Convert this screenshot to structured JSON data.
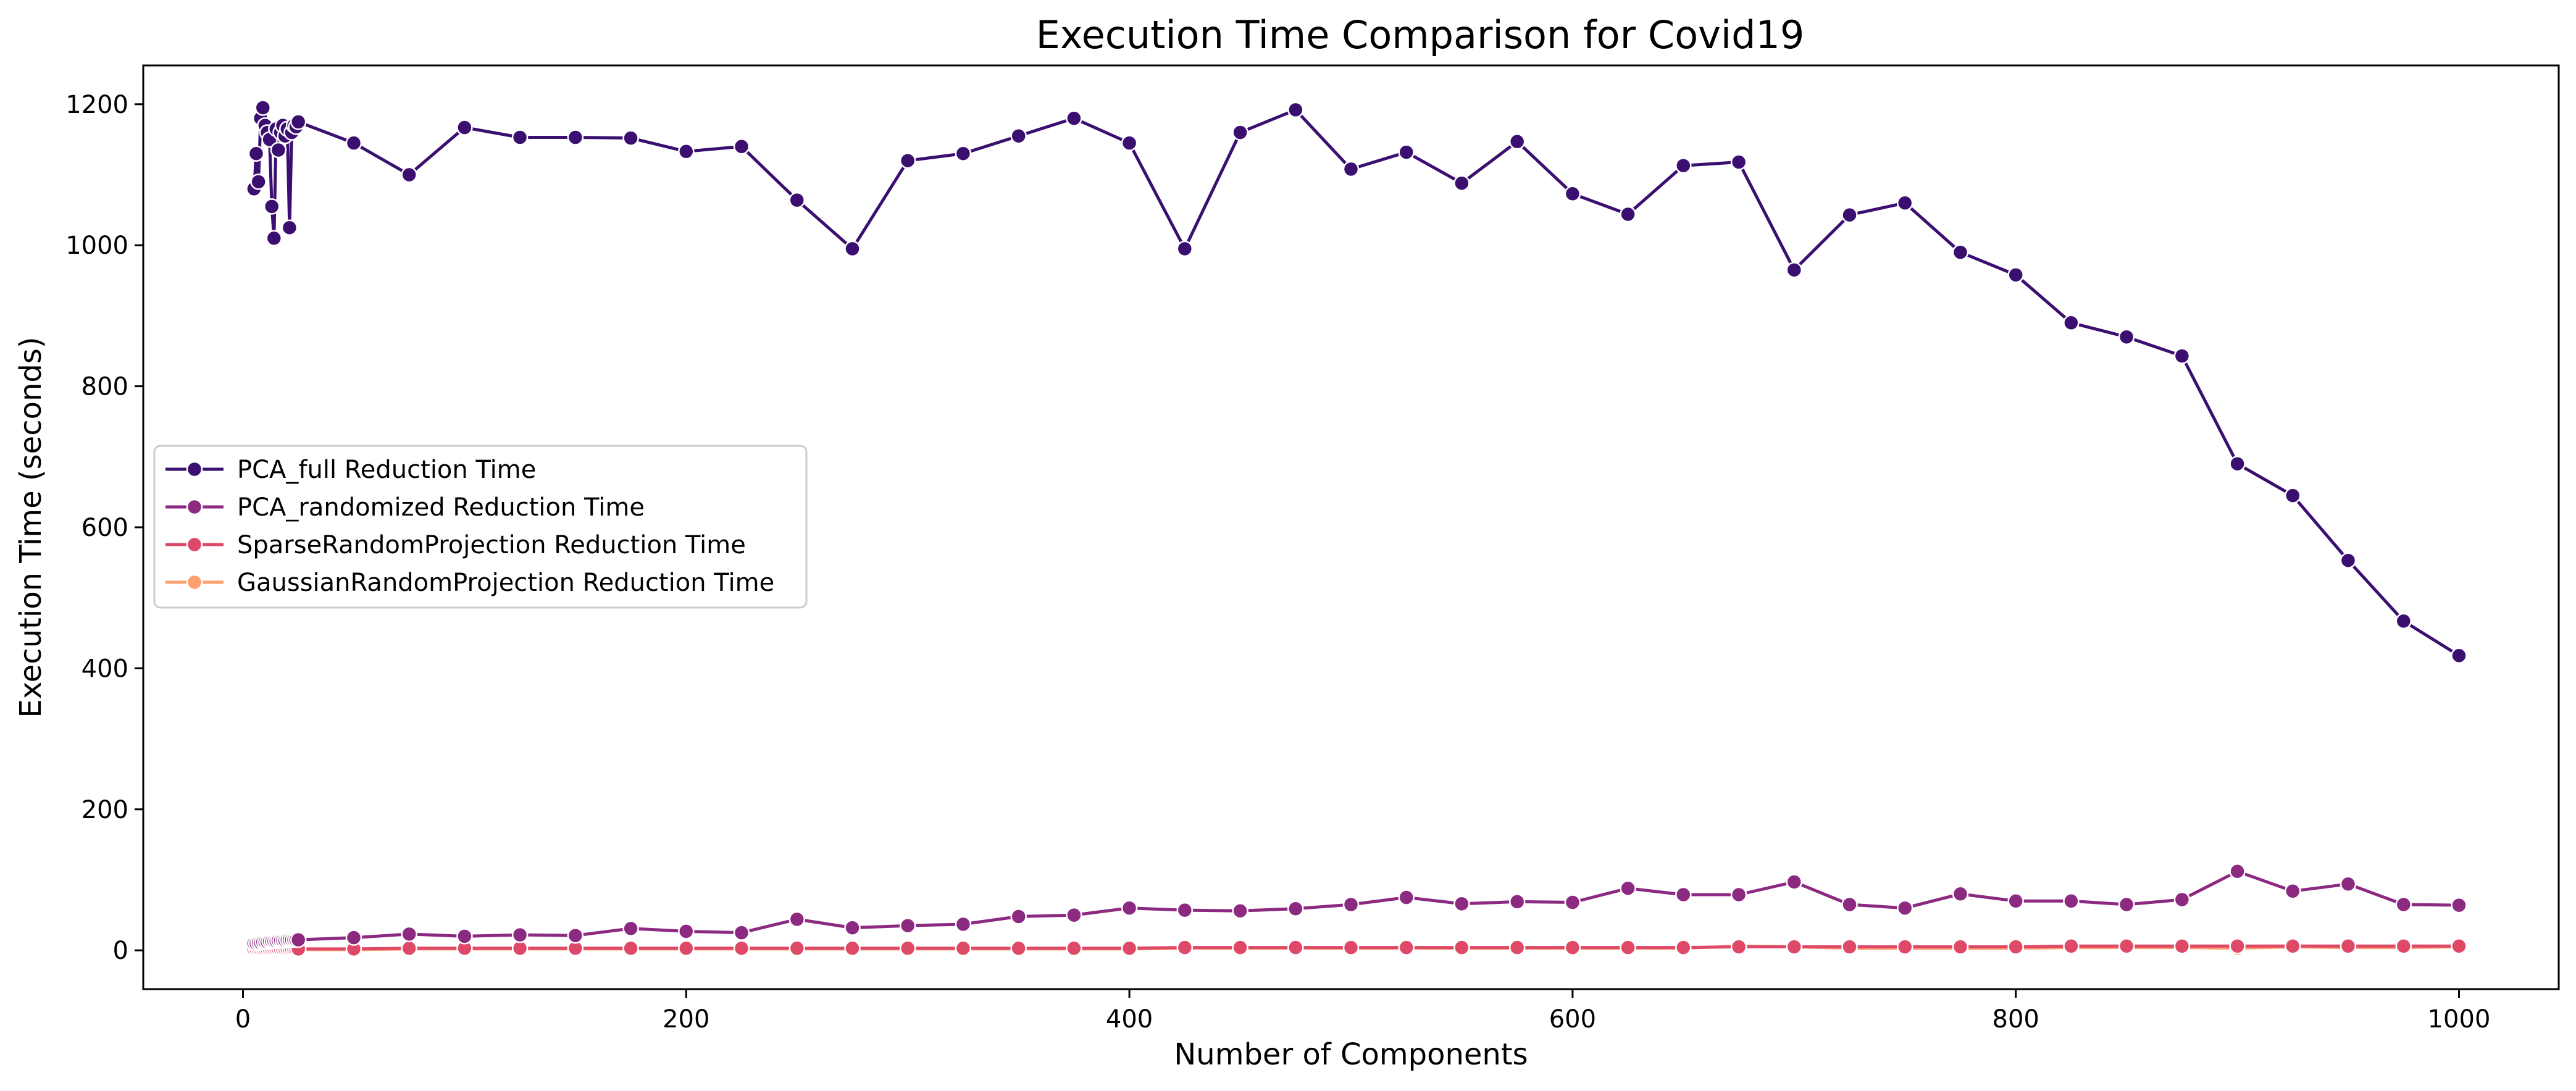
{
  "chart_data": {
    "type": "line",
    "title": "Execution Time Comparison for Covid19",
    "xlabel": "Number of Components",
    "ylabel": "Execution Time (seconds)",
    "xlim": [
      -45,
      1045
    ],
    "ylim": [
      -55,
      1255
    ],
    "xticks": [
      0,
      200,
      400,
      600,
      800,
      1000
    ],
    "yticks": [
      0,
      200,
      400,
      600,
      800,
      1000,
      1200
    ],
    "grid": false,
    "legend_position": "center-left",
    "x": [
      5,
      6,
      7,
      8,
      9,
      10,
      11,
      12,
      13,
      14,
      15,
      16,
      17,
      18,
      19,
      20,
      21,
      22,
      23,
      24,
      25,
      50,
      75,
      100,
      125,
      150,
      175,
      200,
      225,
      250,
      275,
      300,
      325,
      350,
      375,
      400,
      425,
      450,
      475,
      500,
      525,
      550,
      575,
      600,
      625,
      650,
      675,
      700,
      725,
      750,
      775,
      800,
      825,
      850,
      875,
      900,
      925,
      950,
      975,
      1000
    ],
    "series": [
      {
        "name": "PCA_full Reduction Time",
        "color": "#3b0f70",
        "values": [
          1080,
          1130,
          1090,
          1180,
          1195,
          1170,
          1160,
          1150,
          1055,
          1010,
          1165,
          1135,
          1160,
          1170,
          1155,
          1165,
          1025,
          1160,
          1170,
          1168,
          1175,
          1145,
          1100,
          1167,
          1153,
          1153,
          1152,
          1133,
          1140,
          1064,
          995,
          1120,
          1130,
          1155,
          1180,
          1145,
          995,
          1160,
          1192,
          1108,
          1132,
          1088,
          1147,
          1073,
          1044,
          1113,
          1118,
          965,
          1043,
          1060,
          990,
          958,
          890,
          870,
          843,
          690,
          645,
          553,
          467,
          418
        ]
      },
      {
        "name": "PCA_randomized Reduction Time",
        "color": "#8c2981",
        "values": [
          10,
          10,
          11,
          11,
          12,
          12,
          12,
          13,
          13,
          13,
          13,
          14,
          14,
          14,
          14,
          15,
          15,
          15,
          15,
          15,
          15,
          18,
          23,
          20,
          22,
          21,
          31,
          27,
          25,
          44,
          32,
          35,
          37,
          48,
          50,
          60,
          57,
          56,
          59,
          65,
          75,
          66,
          69,
          68,
          88,
          79,
          79,
          97,
          65,
          60,
          80,
          70,
          70,
          65,
          72,
          112,
          84,
          94,
          65,
          64
        ]
      },
      {
        "name": "SparseRandomProjection Reduction Time",
        "color": "#de4968",
        "values": [
          2,
          2,
          2,
          2,
          2,
          2,
          2,
          2,
          2,
          2,
          2,
          2,
          2,
          2,
          2,
          2,
          2,
          2,
          2,
          2,
          2,
          2,
          3,
          3,
          3,
          3,
          3,
          3,
          3,
          3,
          3,
          3,
          3,
          3,
          3,
          3,
          4,
          4,
          4,
          4,
          4,
          4,
          4,
          4,
          4,
          4,
          5,
          5,
          5,
          5,
          5,
          5,
          6,
          6,
          6,
          6,
          6,
          6,
          6,
          6
        ]
      },
      {
        "name": "GaussianRandomProjection Reduction Time",
        "color": "#fe9f6d",
        "values": [
          1,
          1,
          1,
          1,
          1,
          1,
          1,
          1,
          1,
          1,
          1,
          1,
          1,
          1,
          1,
          1,
          1,
          1,
          1,
          1,
          1,
          1,
          2,
          2,
          2,
          2,
          2,
          2,
          2,
          2,
          2,
          2,
          2,
          2,
          2,
          2,
          3,
          3,
          3,
          3,
          3,
          3,
          3,
          3,
          3,
          3,
          6,
          5,
          3,
          3,
          3,
          3,
          4,
          4,
          4,
          3,
          5,
          4,
          4,
          5
        ]
      }
    ]
  }
}
